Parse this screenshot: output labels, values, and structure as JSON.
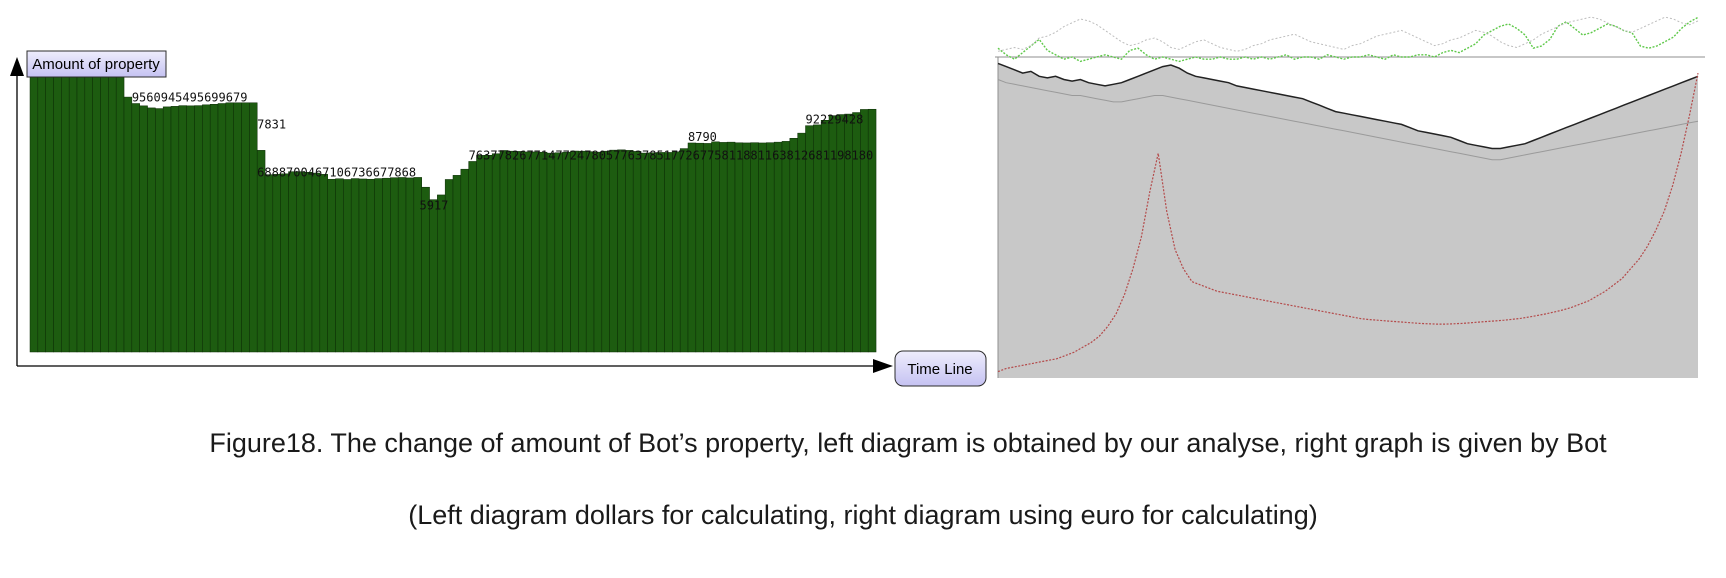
{
  "caption": {
    "line1": "Figure18. The change of amount of Bot’s property, left diagram is obtained by our analyse, right graph is given by Bot",
    "line2": "(Left diagram dollars for calculating, right diagram using euro for calculating)"
  },
  "colors": {
    "bar_fill": "#1d5c10",
    "bar_stroke": "#0b2a05",
    "label_box": "#d7d5f7",
    "right_bg": "#c8c8c8",
    "right_black": "#222222",
    "right_green": "#5fc94a",
    "right_red": "#b44a4a",
    "right_gray": "#9a9a9a"
  },
  "chart_data": [
    {
      "type": "bar",
      "title": "",
      "ylabel": "Amount of property",
      "xlabel": "Time Line",
      "ylim": [
        0,
        12000
      ],
      "grid": false,
      "legend": "none",
      "label_text": "1094710974 9560945495699679 7831 6888700467106736677868 5917 76377826771477247805776378517726775811881163812681198180 8790 92229428",
      "series": [
        {
          "values": [
            10947,
            10974,
            10920,
            10860,
            10800,
            10760,
            10860,
            10974,
            10930,
            10970,
            10974,
            10960,
            9900,
            9650,
            9560,
            9480,
            9454,
            9520,
            9540,
            9569,
            9560,
            9569,
            9600,
            9620,
            9650,
            9679,
            9679,
            9679,
            9679,
            7831,
            6888,
            6900,
            6920,
            7004,
            7004,
            6980,
            6950,
            6900,
            6710,
            6730,
            6700,
            6736,
            6720,
            6710,
            6736,
            6750,
            6770,
            6778,
            6760,
            6780,
            6400,
            5917,
            6100,
            6700,
            6860,
            7100,
            7400,
            7637,
            7640,
            7700,
            7826,
            7800,
            7790,
            7771,
            7770,
            7760,
            7724,
            7740,
            7760,
            7805,
            7800,
            7780,
            7763,
            7800,
            7840,
            7851,
            7830,
            7790,
            7726,
            7740,
            7750,
            7750,
            7775,
            7900,
            8118,
            8110,
            8100,
            8163,
            8140,
            8150,
            8126,
            8120,
            8130,
            8119,
            8130,
            8150,
            8180,
            8300,
            8500,
            8790,
            8820,
            9000,
            9180,
            9222,
            9240,
            9300,
            9420,
            9428
          ]
        }
      ]
    },
    {
      "type": "area",
      "title": "",
      "xlabel": "",
      "ylabel": "",
      "grid": false,
      "legend": "none",
      "series": [
        {
          "values": [
            98,
            97,
            96,
            95,
            95.5,
            94,
            93.5,
            94,
            93,
            92.5,
            93,
            92,
            91.5,
            91,
            91.5,
            92,
            93,
            94,
            95,
            96,
            97,
            97.5,
            96.5,
            95,
            94,
            93.5,
            93,
            92.5,
            92,
            91,
            90.5,
            90,
            89.5,
            89,
            88.5,
            88,
            87.5,
            87,
            86,
            85,
            84,
            83,
            82.5,
            82,
            81.5,
            81,
            80.5,
            80,
            79.5,
            79,
            78,
            77,
            76.5,
            76,
            75.5,
            75,
            74,
            73,
            72.5,
            72,
            71.5,
            71.5,
            72,
            72.5,
            73,
            74,
            75,
            76,
            77,
            78,
            79,
            80,
            81,
            82,
            83,
            84,
            85,
            86,
            87,
            88,
            89,
            90,
            91,
            92,
            93,
            94
          ]
        },
        {
          "values": [
            93,
            92,
            91.5,
            91,
            90.5,
            90,
            89.5,
            89,
            88.5,
            88,
            88,
            87.5,
            87,
            86.5,
            86,
            86,
            86.5,
            87,
            87.5,
            88,
            88,
            87.5,
            87,
            86.5,
            86,
            85.5,
            85,
            84.5,
            84,
            83.5,
            83,
            82.5,
            82,
            81.5,
            81,
            80.5,
            80,
            79.5,
            79,
            78.5,
            78,
            77.5,
            77,
            76.5,
            76,
            75.5,
            75,
            74.5,
            74,
            73.5,
            73,
            72.5,
            72,
            71.5,
            71,
            70.5,
            70,
            69.5,
            69,
            68.5,
            68,
            68,
            68.5,
            69,
            69.5,
            70,
            70.5,
            71,
            71.5,
            72,
            72.5,
            73,
            73.5,
            74,
            74.5,
            75,
            75.5,
            76,
            76.5,
            77,
            77.5,
            78,
            78.5,
            79,
            79.5,
            80
          ]
        },
        {
          "values": [
            104,
            101,
            99,
            102,
            105,
            108,
            103,
            101,
            99,
            100,
            98,
            99,
            100,
            101,
            100,
            99,
            103,
            104,
            101,
            99,
            100,
            99,
            98,
            99,
            100,
            99,
            99,
            100,
            99,
            99,
            100,
            99,
            100,
            99,
            100,
            101,
            99,
            100,
            100,
            99,
            101,
            100,
            99,
            100,
            100,
            101,
            100,
            99,
            101,
            100,
            100,
            101,
            101,
            100,
            102,
            103,
            102,
            104,
            106,
            110,
            112,
            114,
            115,
            113,
            110,
            104,
            105,
            108,
            114,
            116,
            113,
            110,
            111,
            113,
            115,
            114,
            112,
            111,
            105,
            104,
            105,
            107,
            109,
            113,
            116,
            118
          ]
        },
        {
          "values": [
            103,
            104,
            105,
            104,
            106,
            110,
            111,
            113,
            116,
            118,
            120,
            119,
            117,
            114,
            111,
            108,
            106,
            107,
            109,
            110,
            108,
            105,
            104,
            106,
            108,
            109,
            107,
            105,
            104,
            103,
            104,
            106,
            107,
            109,
            110,
            111,
            112,
            110,
            108,
            107,
            106,
            105,
            104,
            106,
            107,
            109,
            111,
            112,
            113,
            114,
            112,
            110,
            108,
            106,
            107,
            109,
            110,
            112,
            114,
            113,
            111,
            108,
            106,
            105,
            107,
            109,
            112,
            114,
            116,
            118,
            119,
            120,
            121,
            120,
            118,
            116,
            114,
            113,
            115,
            117,
            119,
            121,
            120,
            118,
            117,
            119
          ]
        },
        {
          "values": [
            2,
            3,
            3.5,
            4,
            4.5,
            5,
            5.5,
            6,
            7,
            8,
            9.5,
            11,
            13,
            16,
            20,
            26,
            34,
            44,
            58,
            70,
            52,
            40,
            34,
            30,
            29,
            28,
            27,
            26.5,
            26,
            25.5,
            25,
            24.5,
            24,
            23.5,
            23,
            22.5,
            22,
            21.5,
            21,
            20.5,
            20,
            19.5,
            19,
            18.5,
            18.2,
            18,
            17.8,
            17.6,
            17.4,
            17.2,
            17,
            16.9,
            16.8,
            16.8,
            16.9,
            17,
            17.2,
            17.4,
            17.6,
            17.8,
            18,
            18.3,
            18.6,
            19,
            19.5,
            20,
            20.6,
            21.2,
            22,
            23,
            24,
            25.5,
            27,
            29,
            31,
            34,
            37,
            41,
            46,
            52,
            60,
            70,
            82,
            95
          ]
        }
      ]
    }
  ]
}
